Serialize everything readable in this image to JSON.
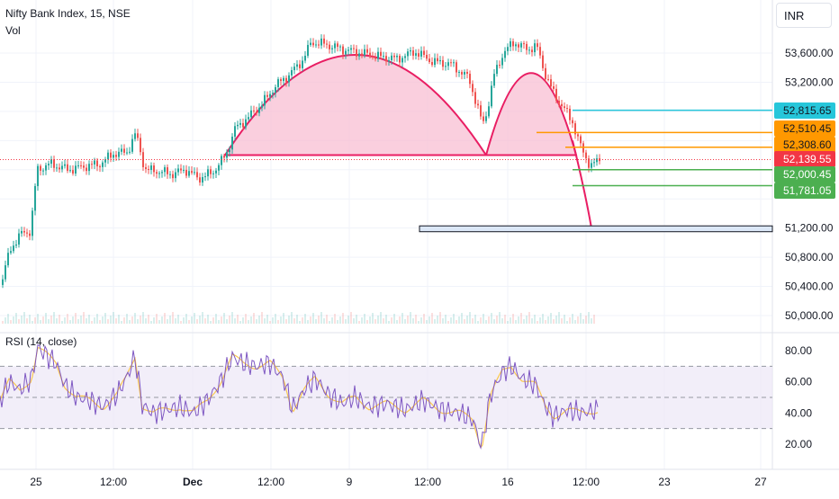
{
  "header": {
    "title": "Nifty Bank Index, 15, NSE",
    "volume_label": "Vol",
    "currency": "INR"
  },
  "rsi_label": "RSI (14, close)",
  "chart_data": [
    {
      "type": "candlestick",
      "title": "Nifty Bank Index, 15, NSE",
      "ylim": [
        49950,
        54150
      ],
      "y_ticks": [
        50000,
        50400,
        50800,
        51200,
        51600,
        52000,
        52400,
        52800,
        53200,
        53600
      ],
      "y_tick_labels": [
        "50,000.00",
        "50,400.00",
        "50,800.00",
        "51,200.00",
        "",
        "",
        "",
        "",
        "53,200.00",
        "53,600.00"
      ],
      "close_trace": [
        [
          0,
          50420
        ],
        [
          10,
          50900
        ],
        [
          22,
          51120
        ],
        [
          33,
          51160
        ],
        [
          40,
          52000
        ],
        [
          55,
          52080
        ],
        [
          75,
          52000
        ],
        [
          95,
          52050
        ],
        [
          110,
          52080
        ],
        [
          125,
          52220
        ],
        [
          140,
          52240
        ],
        [
          150,
          52500
        ],
        [
          160,
          52000
        ],
        [
          175,
          51980
        ],
        [
          190,
          51940
        ],
        [
          205,
          52000
        ],
        [
          220,
          51880
        ],
        [
          235,
          51960
        ],
        [
          250,
          52200
        ],
        [
          260,
          52560
        ],
        [
          275,
          52720
        ],
        [
          290,
          52900
        ],
        [
          305,
          53150
        ],
        [
          320,
          53300
        ],
        [
          335,
          53500
        ],
        [
          345,
          53750
        ],
        [
          360,
          53720
        ],
        [
          380,
          53650
        ],
        [
          400,
          53600
        ],
        [
          420,
          53550
        ],
        [
          440,
          53520
        ],
        [
          460,
          53620
        ],
        [
          480,
          53480
        ],
        [
          500,
          53450
        ],
        [
          520,
          53250
        ],
        [
          535,
          52620
        ],
        [
          540,
          52800
        ],
        [
          548,
          53300
        ],
        [
          558,
          53600
        ],
        [
          570,
          53750
        ],
        [
          585,
          53650
        ],
        [
          595,
          53700
        ],
        [
          605,
          53300
        ],
        [
          615,
          53020
        ],
        [
          625,
          52850
        ],
        [
          635,
          52650
        ],
        [
          645,
          52280
        ],
        [
          655,
          52050
        ],
        [
          665,
          52140
        ]
      ],
      "levels": [
        {
          "value": 52815.65,
          "label": "52,815.65",
          "color": "#26c6da"
        },
        {
          "value": 52510.45,
          "label": "52,510.45",
          "color": "#ff9800"
        },
        {
          "value": 52308.6,
          "label": "52,308.60",
          "color": "#ff9800"
        },
        {
          "value": 52139.55,
          "label": "52,139.55",
          "color": "#f23645"
        },
        {
          "value": 52000.45,
          "label": "52,000.45",
          "color": "#4caf50"
        },
        {
          "value": 51781.05,
          "label": "51,781.05",
          "color": "#4caf50"
        }
      ],
      "support_zone": [
        51150,
        51230
      ],
      "x_tick_labels": [
        "25",
        "12:00",
        "Dec",
        "12:00",
        "9",
        "12:00",
        "16",
        "12:00",
        "23",
        "27"
      ]
    },
    {
      "type": "line",
      "title": "RSI (14, close)",
      "ylim": [
        10,
        88
      ],
      "y_ticks": [
        20,
        40,
        60,
        80
      ],
      "y_tick_labels": [
        "20.00",
        "40.00",
        "60.00",
        "80.00"
      ],
      "bands": [
        30,
        50,
        70
      ],
      "rsi_trace": [
        [
          0,
          48
        ],
        [
          10,
          60
        ],
        [
          22,
          55
        ],
        [
          35,
          62
        ],
        [
          42,
          82
        ],
        [
          50,
          78
        ],
        [
          62,
          72
        ],
        [
          72,
          58
        ],
        [
          85,
          50
        ],
        [
          100,
          48
        ],
        [
          115,
          44
        ],
        [
          130,
          52
        ],
        [
          140,
          62
        ],
        [
          150,
          76
        ],
        [
          158,
          45
        ],
        [
          170,
          40
        ],
        [
          185,
          42
        ],
        [
          200,
          44
        ],
        [
          215,
          40
        ],
        [
          230,
          48
        ],
        [
          245,
          60
        ],
        [
          258,
          76
        ],
        [
          270,
          72
        ],
        [
          285,
          70
        ],
        [
          300,
          72
        ],
        [
          315,
          62
        ],
        [
          325,
          42
        ],
        [
          338,
          55
        ],
        [
          350,
          62
        ],
        [
          365,
          52
        ],
        [
          380,
          46
        ],
        [
          395,
          50
        ],
        [
          410,
          44
        ],
        [
          430,
          46
        ],
        [
          450,
          42
        ],
        [
          470,
          48
        ],
        [
          490,
          42
        ],
        [
          510,
          40
        ],
        [
          525,
          36
        ],
        [
          535,
          18
        ],
        [
          545,
          52
        ],
        [
          558,
          66
        ],
        [
          568,
          70
        ],
        [
          580,
          62
        ],
        [
          595,
          58
        ],
        [
          605,
          45
        ],
        [
          615,
          38
        ],
        [
          630,
          42
        ],
        [
          645,
          40
        ],
        [
          665,
          42
        ]
      ],
      "x_tick_labels": [
        "25",
        "12:00",
        "Dec",
        "12:00",
        "9",
        "12:00",
        "16",
        "12:00",
        "23",
        "27"
      ]
    }
  ],
  "colors": {
    "up": "#26a69a",
    "down": "#ef5350",
    "pattern_fill": "#f8bbd0",
    "pattern_stroke": "#e91e63",
    "rsi_line": "#7e57c2",
    "rsi_ma": "#f9c74f",
    "rsi_band_fill": "#ede7f6"
  }
}
